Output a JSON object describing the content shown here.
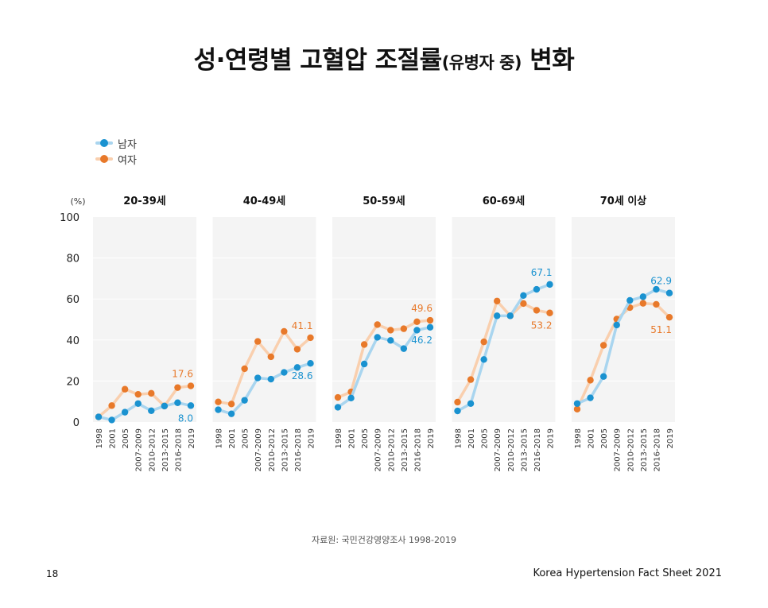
{
  "title": {
    "main": "성·연령별 고혈압 조절률",
    "sub": "(유병자 중)",
    "tail": " 변화"
  },
  "legend": [
    {
      "label": "남자",
      "color": "#1a92d0",
      "line_color": "#a9d5ef"
    },
    {
      "label": "여자",
      "color": "#e8792a",
      "line_color": "#f9cfae"
    }
  ],
  "chart_data": {
    "type": "line",
    "unit_label": "(%)",
    "ylim": [
      0,
      100
    ],
    "yticks": [
      0,
      20,
      40,
      60,
      80,
      100
    ],
    "grid": true,
    "legend_position": "top-left",
    "x": [
      "1998",
      "2001",
      "2005",
      "2007-2009",
      "2010-2012",
      "2013-2015",
      "2016-2018",
      "2019"
    ],
    "panels": [
      {
        "title": "20-39세",
        "series": [
          {
            "name": "남자",
            "values": [
              2.5,
              1.0,
              4.8,
              9.0,
              5.5,
              7.8,
              9.4,
              8.0
            ],
            "end_label": "8.0"
          },
          {
            "name": "여자",
            "values": [
              2.5,
              8.0,
              16.0,
              13.5,
              14.0,
              7.8,
              16.8,
              17.6
            ],
            "end_label": "17.6"
          }
        ]
      },
      {
        "title": "40-49세",
        "series": [
          {
            "name": "남자",
            "values": [
              6.0,
              4.0,
              10.6,
              21.5,
              20.9,
              24.2,
              26.6,
              28.6
            ],
            "end_label": "28.6"
          },
          {
            "name": "여자",
            "values": [
              9.8,
              8.8,
              26.0,
              39.3,
              31.8,
              44.2,
              35.5,
              41.1
            ],
            "end_label": "41.1"
          }
        ]
      },
      {
        "title": "50-59세",
        "series": [
          {
            "name": "남자",
            "values": [
              7.2,
              11.7,
              28.3,
              41.3,
              39.8,
              35.8,
              44.8,
              46.2
            ],
            "end_label": "46.2"
          },
          {
            "name": "여자",
            "values": [
              12.0,
              14.7,
              37.8,
              47.5,
              44.8,
              45.5,
              48.9,
              49.6
            ],
            "end_label": "49.6"
          }
        ]
      },
      {
        "title": "60-69세",
        "series": [
          {
            "name": "남자",
            "values": [
              5.4,
              9.0,
              30.5,
              51.8,
              51.8,
              61.7,
              64.7,
              67.1
            ],
            "end_label": "67.1"
          },
          {
            "name": "여자",
            "values": [
              9.7,
              20.7,
              39.1,
              59.0,
              51.8,
              57.8,
              54.5,
              53.2
            ],
            "end_label": "53.2"
          }
        ]
      },
      {
        "title": "70세 이상",
        "series": [
          {
            "name": "남자",
            "values": [
              9.0,
              11.8,
              22.2,
              47.3,
              59.3,
              61.1,
              64.7,
              62.9
            ],
            "end_label": "62.9"
          },
          {
            "name": "여자",
            "values": [
              6.3,
              20.4,
              37.4,
              50.2,
              55.8,
              57.9,
              57.4,
              51.1
            ],
            "end_label": "51.1"
          }
        ]
      }
    ]
  },
  "source": "자료원: 국민건강영양조사 1998-2019",
  "page_number": "18",
  "footer": "Korea Hypertension Fact Sheet 2021"
}
